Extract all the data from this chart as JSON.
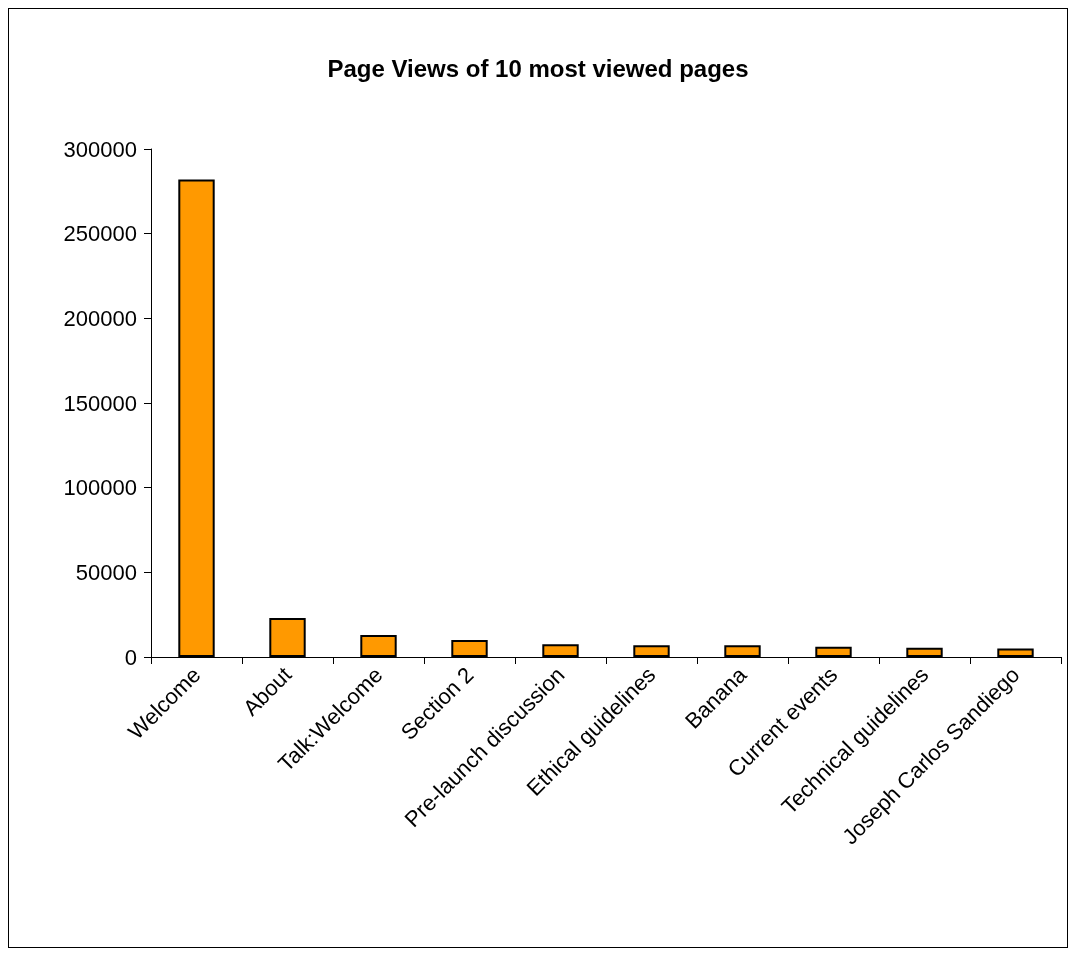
{
  "chart_data": {
    "type": "bar",
    "title": "Page Views of 10 most viewed pages",
    "categories": [
      "Welcome",
      "About",
      "Talk:Welcome",
      "Section 2",
      "Pre-launch discussion",
      "Ethical guidelines",
      "Banana",
      "Current events",
      "Technical guidelines",
      "Joseph Carlos Sandiego"
    ],
    "values": [
      282000,
      23000,
      13000,
      10000,
      7500,
      7000,
      7000,
      6000,
      5500,
      5000
    ],
    "color": "#ff9900",
    "ylim": [
      0,
      300000
    ],
    "yticks": [
      0,
      50000,
      100000,
      150000,
      200000,
      250000,
      300000
    ],
    "grid": false
  }
}
